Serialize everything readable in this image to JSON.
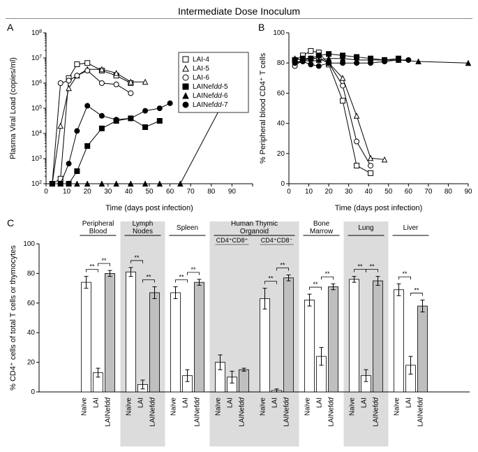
{
  "overall_title": "Intermediate Dose Inoculum",
  "colors": {
    "black": "#000000",
    "white": "#ffffff",
    "gray_band": "#dcdcdc",
    "bar_fill": "#ffffff",
    "bar_fill_naive": "#ffffff",
    "bar_fill_lai": "#ffffff",
    "bar_fill_nef": "#bfbfbf",
    "axis": "#000000"
  },
  "panelA": {
    "letter": "A",
    "xlabel": "Time (days post infection)",
    "ylabel": "Plasma Viral Load (copies/ml)",
    "xlim": [
      0,
      100
    ],
    "xticks": [
      0,
      10,
      20,
      30,
      40,
      50,
      60,
      70,
      80,
      90,
      100
    ],
    "xtick_labels": [
      "0",
      "10",
      "20",
      "30",
      "40",
      "50",
      "60",
      "70",
      "80",
      "90",
      ""
    ],
    "y_log_exponents": [
      2,
      3,
      4,
      5,
      6,
      7,
      8
    ],
    "series": [
      {
        "name": "LAI-4",
        "marker": "square",
        "fill": "#ffffff",
        "stroke": "#000000",
        "points": [
          [
            3,
            2
          ],
          [
            7,
            2.2
          ],
          [
            11,
            6.2
          ],
          [
            15,
            6.75
          ],
          [
            20,
            6.8
          ],
          [
            27,
            6.5
          ],
          [
            34,
            6.3
          ],
          [
            41,
            6.0
          ]
        ]
      },
      {
        "name": "LAI-5",
        "marker": "triangle",
        "fill": "#ffffff",
        "stroke": "#000000",
        "points": [
          [
            3,
            2
          ],
          [
            7,
            4.3
          ],
          [
            11,
            5.8
          ],
          [
            15,
            6.3
          ],
          [
            20,
            6.55
          ],
          [
            27,
            6.55
          ],
          [
            34,
            6.4
          ],
          [
            41,
            6.05
          ],
          [
            48,
            6.05
          ]
        ]
      },
      {
        "name": "LAI-6",
        "marker": "circle",
        "fill": "#ffffff",
        "stroke": "#000000",
        "points": [
          [
            3,
            2
          ],
          [
            7,
            6.0
          ],
          [
            11,
            6.1
          ],
          [
            15,
            6.3
          ],
          [
            20,
            6.5
          ],
          [
            27,
            6.0
          ],
          [
            34,
            5.95
          ],
          [
            41,
            5.6
          ]
        ]
      },
      {
        "name": "LAINefdd-5",
        "marker": "square",
        "fill": "#000000",
        "stroke": "#000000",
        "points": [
          [
            3,
            2
          ],
          [
            7,
            2
          ],
          [
            11,
            2
          ],
          [
            15,
            2.5
          ],
          [
            20,
            3.5
          ],
          [
            27,
            4.2
          ],
          [
            34,
            4.5
          ],
          [
            41,
            4.6
          ],
          [
            48,
            4.25
          ],
          [
            55,
            4.5
          ]
        ]
      },
      {
        "name": "LAINefdd-6",
        "marker": "triangle",
        "fill": "#000000",
        "stroke": "#000000",
        "points": [
          [
            3,
            2
          ],
          [
            7,
            2
          ],
          [
            11,
            2
          ],
          [
            15,
            2
          ],
          [
            20,
            2
          ],
          [
            27,
            2
          ],
          [
            34,
            2
          ],
          [
            41,
            2
          ],
          [
            48,
            2
          ],
          [
            55,
            2
          ],
          [
            65,
            2
          ],
          [
            92,
            6.2
          ]
        ]
      },
      {
        "name": "LAINefdd-7",
        "marker": "circle",
        "fill": "#000000",
        "stroke": "#000000",
        "points": [
          [
            3,
            2
          ],
          [
            7,
            2
          ],
          [
            11,
            2.8
          ],
          [
            15,
            4.1
          ],
          [
            20,
            5.1
          ],
          [
            27,
            4.7
          ],
          [
            34,
            4.55
          ],
          [
            41,
            4.6
          ],
          [
            48,
            4.9
          ],
          [
            55,
            5.0
          ],
          [
            60,
            5.2
          ]
        ]
      }
    ],
    "legend": [
      {
        "label": "LAI-4",
        "marker": "square",
        "fill": "#ffffff"
      },
      {
        "label": "LAI-5",
        "marker": "triangle",
        "fill": "#ffffff"
      },
      {
        "label": "LAI-6",
        "marker": "circle",
        "fill": "#ffffff"
      },
      {
        "label": "LAINefdd-5",
        "marker": "square",
        "fill": "#000000",
        "italic_dd": true
      },
      {
        "label": "LAINefdd-6",
        "marker": "triangle",
        "fill": "#000000",
        "italic_dd": true
      },
      {
        "label": "LAINefdd-7",
        "marker": "circle",
        "fill": "#000000",
        "italic_dd": true
      }
    ]
  },
  "panelB": {
    "letter": "B",
    "xlabel": "Time (days post infection)",
    "ylabel": "% Peripheral blood CD4⁺ T cells",
    "xlim": [
      0,
      90
    ],
    "xticks": [
      0,
      10,
      20,
      30,
      40,
      50,
      60,
      70,
      80,
      90
    ],
    "ylim": [
      0,
      100
    ],
    "yticks": [
      0,
      20,
      40,
      60,
      80,
      100
    ],
    "series": [
      {
        "name": "LAI-4",
        "marker": "square",
        "fill": "#ffffff",
        "points": [
          [
            3,
            82
          ],
          [
            7,
            85
          ],
          [
            11,
            88
          ],
          [
            15,
            87
          ],
          [
            20,
            79
          ],
          [
            27,
            55
          ],
          [
            34,
            12
          ],
          [
            41,
            7
          ]
        ]
      },
      {
        "name": "LAI-5",
        "marker": "triangle",
        "fill": "#ffffff",
        "points": [
          [
            3,
            80
          ],
          [
            7,
            82
          ],
          [
            11,
            83
          ],
          [
            15,
            83
          ],
          [
            20,
            80
          ],
          [
            27,
            70
          ],
          [
            34,
            45
          ],
          [
            41,
            17
          ],
          [
            48,
            16
          ]
        ]
      },
      {
        "name": "LAI-6",
        "marker": "circle",
        "fill": "#ffffff",
        "points": [
          [
            3,
            78
          ],
          [
            7,
            82
          ],
          [
            11,
            83
          ],
          [
            15,
            83
          ],
          [
            20,
            80
          ],
          [
            27,
            65
          ],
          [
            34,
            28
          ],
          [
            41,
            12
          ]
        ]
      },
      {
        "name": "LAINefdd-5",
        "marker": "square",
        "fill": "#000000",
        "points": [
          [
            3,
            82
          ],
          [
            7,
            83
          ],
          [
            11,
            83
          ],
          [
            15,
            85
          ],
          [
            20,
            86
          ],
          [
            27,
            85
          ],
          [
            34,
            84
          ],
          [
            41,
            83
          ],
          [
            48,
            82
          ],
          [
            55,
            83
          ]
        ]
      },
      {
        "name": "LAINefdd-6",
        "marker": "triangle",
        "fill": "#000000",
        "points": [
          [
            3,
            83
          ],
          [
            7,
            82
          ],
          [
            11,
            81
          ],
          [
            15,
            82
          ],
          [
            20,
            83
          ],
          [
            27,
            83
          ],
          [
            34,
            82
          ],
          [
            41,
            82
          ],
          [
            48,
            82
          ],
          [
            55,
            82
          ],
          [
            65,
            81
          ],
          [
            90,
            80
          ]
        ]
      },
      {
        "name": "LAINefdd-7",
        "marker": "circle",
        "fill": "#000000",
        "points": [
          [
            3,
            80
          ],
          [
            7,
            81
          ],
          [
            11,
            79
          ],
          [
            15,
            78
          ],
          [
            20,
            80
          ],
          [
            27,
            80
          ],
          [
            34,
            80
          ],
          [
            41,
            80
          ],
          [
            48,
            81
          ],
          [
            55,
            82
          ],
          [
            60,
            82
          ]
        ]
      }
    ]
  },
  "panelC": {
    "letter": "C",
    "ylabel": "% CD4⁺ cells of total T cells or thymocytes",
    "ylim": [
      0,
      100
    ],
    "yticks": [
      0,
      20,
      40,
      60,
      80,
      100
    ],
    "group_width": 3,
    "x_labels": [
      "Naïve",
      "LAI",
      "LAINefdd"
    ],
    "tissues": [
      {
        "name": "Peripheral Blood",
        "subs": null,
        "shade": false,
        "bars": [
          {
            "v": 74,
            "e": 4,
            "fill": "#ffffff"
          },
          {
            "v": 13,
            "e": 3,
            "fill": "#ffffff"
          },
          {
            "v": 80,
            "e": 2,
            "fill": "#bfbfbf"
          }
        ],
        "sig": [
          [
            0,
            1,
            "**"
          ],
          [
            1,
            2,
            "**"
          ]
        ]
      },
      {
        "name": "Lymph Nodes",
        "subs": null,
        "shade": true,
        "bars": [
          {
            "v": 81,
            "e": 3,
            "fill": "#ffffff"
          },
          {
            "v": 5,
            "e": 3,
            "fill": "#ffffff"
          },
          {
            "v": 67,
            "e": 4,
            "fill": "#bfbfbf"
          }
        ],
        "sig": [
          [
            0,
            1,
            "**"
          ],
          [
            1,
            2,
            "**"
          ]
        ]
      },
      {
        "name": "Spleen",
        "subs": null,
        "shade": false,
        "bars": [
          {
            "v": 67,
            "e": 4,
            "fill": "#ffffff"
          },
          {
            "v": 11,
            "e": 4,
            "fill": "#ffffff"
          },
          {
            "v": 74,
            "e": 2,
            "fill": "#bfbfbf"
          }
        ],
        "sig": [
          [
            0,
            1,
            "**"
          ],
          [
            1,
            2,
            "**"
          ]
        ]
      },
      {
        "name": "Human Thymic Organoid",
        "subs": [
          "CD4⁺CD8⁺",
          "CD4⁺CD8⁻"
        ],
        "shade": true,
        "bar_sets": [
          {
            "bars": [
              {
                "v": 20,
                "e": 5,
                "fill": "#ffffff"
              },
              {
                "v": 10,
                "e": 4,
                "fill": "#ffffff"
              },
              {
                "v": 15,
                "e": 1,
                "fill": "#bfbfbf"
              }
            ],
            "sig": []
          },
          {
            "bars": [
              {
                "v": 63,
                "e": 7,
                "fill": "#ffffff"
              },
              {
                "v": 1,
                "e": 1,
                "fill": "#ffffff"
              },
              {
                "v": 77,
                "e": 2,
                "fill": "#bfbfbf"
              }
            ],
            "sig": [
              [
                0,
                1,
                "**"
              ],
              [
                1,
                2,
                "**"
              ]
            ]
          }
        ]
      },
      {
        "name": "Bone Marrow",
        "subs": null,
        "shade": false,
        "bars": [
          {
            "v": 62,
            "e": 4,
            "fill": "#ffffff"
          },
          {
            "v": 24,
            "e": 6,
            "fill": "#ffffff"
          },
          {
            "v": 71,
            "e": 2,
            "fill": "#bfbfbf"
          }
        ],
        "sig": [
          [
            0,
            1,
            "**"
          ],
          [
            1,
            2,
            "**"
          ]
        ]
      },
      {
        "name": "Lung",
        "subs": null,
        "shade": true,
        "bars": [
          {
            "v": 76,
            "e": 2,
            "fill": "#ffffff"
          },
          {
            "v": 11,
            "e": 4,
            "fill": "#ffffff"
          },
          {
            "v": 75,
            "e": 3,
            "fill": "#bfbfbf"
          }
        ],
        "sig": [
          [
            0,
            1,
            "**"
          ],
          [
            1,
            2,
            "**"
          ]
        ]
      },
      {
        "name": "Liver",
        "subs": null,
        "shade": false,
        "bars": [
          {
            "v": 69,
            "e": 4,
            "fill": "#ffffff"
          },
          {
            "v": 18,
            "e": 6,
            "fill": "#ffffff"
          },
          {
            "v": 58,
            "e": 4,
            "fill": "#bfbfbf"
          }
        ],
        "sig": [
          [
            0,
            1,
            "**"
          ],
          [
            1,
            2,
            "**"
          ]
        ]
      }
    ]
  }
}
